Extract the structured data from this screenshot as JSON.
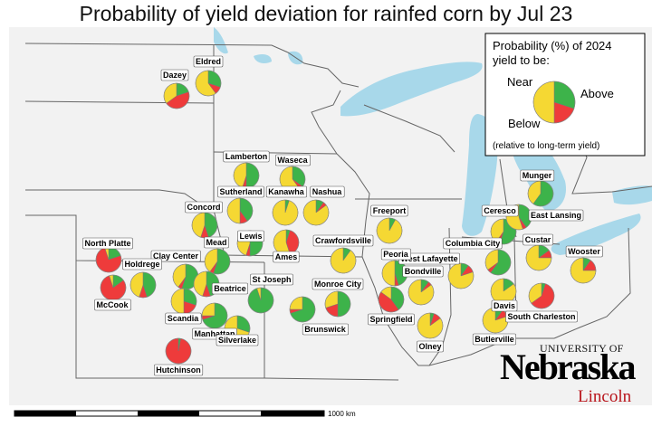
{
  "chart_data": {
    "type": "map-pie",
    "title": "Probability of yield deviation for rainfed corn by Jul 23",
    "legend": {
      "heading_line1": "Probability (%) of 2024",
      "heading_line2": "yield to be:",
      "near": "Near",
      "above": "Above",
      "below": "Below",
      "note": "(relative to long-term yield)",
      "placement": "top-right"
    },
    "colors": {
      "below": "#ee3b3b",
      "near": "#f5d833",
      "above": "#3db34a"
    },
    "scale_bar": {
      "label": "1000 km"
    },
    "sites": [
      {
        "name": "Eldred",
        "below": 10,
        "near": 60,
        "above": 30
      },
      {
        "name": "Dazey",
        "below": 45,
        "near": 35,
        "above": 20
      },
      {
        "name": "Lamberton",
        "below": 5,
        "near": 45,
        "above": 50
      },
      {
        "name": "Waseca",
        "below": 5,
        "near": 60,
        "above": 35
      },
      {
        "name": "Sutherland",
        "below": 10,
        "near": 50,
        "above": 40
      },
      {
        "name": "Kanawha",
        "below": 0,
        "near": 95,
        "above": 5
      },
      {
        "name": "Nashua",
        "below": 5,
        "near": 85,
        "above": 10
      },
      {
        "name": "Concord",
        "below": 10,
        "near": 45,
        "above": 45
      },
      {
        "name": "Freeport",
        "below": 0,
        "near": 92,
        "above": 8
      },
      {
        "name": "Munger",
        "below": 0,
        "near": 40,
        "above": 60
      },
      {
        "name": "Ceresco",
        "below": 5,
        "near": 40,
        "above": 55
      },
      {
        "name": "East Lansing",
        "below": 5,
        "near": 55,
        "above": 40
      },
      {
        "name": "Lewis",
        "below": 5,
        "near": 45,
        "above": 50
      },
      {
        "name": "Ames",
        "below": 40,
        "near": 55,
        "above": 5
      },
      {
        "name": "Crawfordsville",
        "below": 0,
        "near": 90,
        "above": 10
      },
      {
        "name": "North Platte",
        "below": 75,
        "near": 5,
        "above": 20
      },
      {
        "name": "Mead",
        "below": 5,
        "near": 40,
        "above": 55
      },
      {
        "name": "Clay Center",
        "below": 5,
        "near": 40,
        "above": 55
      },
      {
        "name": "Holdrege",
        "below": 10,
        "near": 45,
        "above": 45
      },
      {
        "name": "Custar",
        "below": 10,
        "near": 75,
        "above": 15
      },
      {
        "name": "Wooster",
        "below": 15,
        "near": 75,
        "above": 10
      },
      {
        "name": "Columbia City",
        "below": 5,
        "near": 35,
        "above": 60
      },
      {
        "name": "West Lafayette",
        "below": 10,
        "near": 80,
        "above": 10
      },
      {
        "name": "Peoria",
        "below": 5,
        "near": 50,
        "above": 45
      },
      {
        "name": "Bondville",
        "below": 5,
        "near": 85,
        "above": 10
      },
      {
        "name": "St Joseph",
        "below": 0,
        "near": 5,
        "above": 95
      },
      {
        "name": "Beatrice",
        "below": 10,
        "near": 45,
        "above": 45
      },
      {
        "name": "Monroe City",
        "below": 20,
        "near": 30,
        "above": 50
      },
      {
        "name": "McCook",
        "below": 80,
        "near": 5,
        "above": 15
      },
      {
        "name": "Scandia",
        "below": 20,
        "near": 50,
        "above": 30
      },
      {
        "name": "Brunswick",
        "below": 5,
        "near": 25,
        "above": 70
      },
      {
        "name": "Springfield",
        "below": 45,
        "near": 15,
        "above": 40
      },
      {
        "name": "Davis",
        "below": 0,
        "near": 85,
        "above": 15
      },
      {
        "name": "South Charleston",
        "below": 60,
        "near": 35,
        "above": 5
      },
      {
        "name": "Manhattan",
        "below": 5,
        "near": 25,
        "above": 70
      },
      {
        "name": "Silverlake",
        "below": 0,
        "near": 70,
        "above": 30
      },
      {
        "name": "Olney",
        "below": 10,
        "near": 85,
        "above": 5
      },
      {
        "name": "Butlerville",
        "below": 10,
        "near": 80,
        "above": 10
      },
      {
        "name": "Hutchinson",
        "below": 97,
        "near": 0,
        "above": 3
      }
    ]
  },
  "logo": {
    "university": "UNIVERSITY OF",
    "name": "Nebraska",
    "campus": "Lincoln",
    "accent": "#b8141b"
  }
}
